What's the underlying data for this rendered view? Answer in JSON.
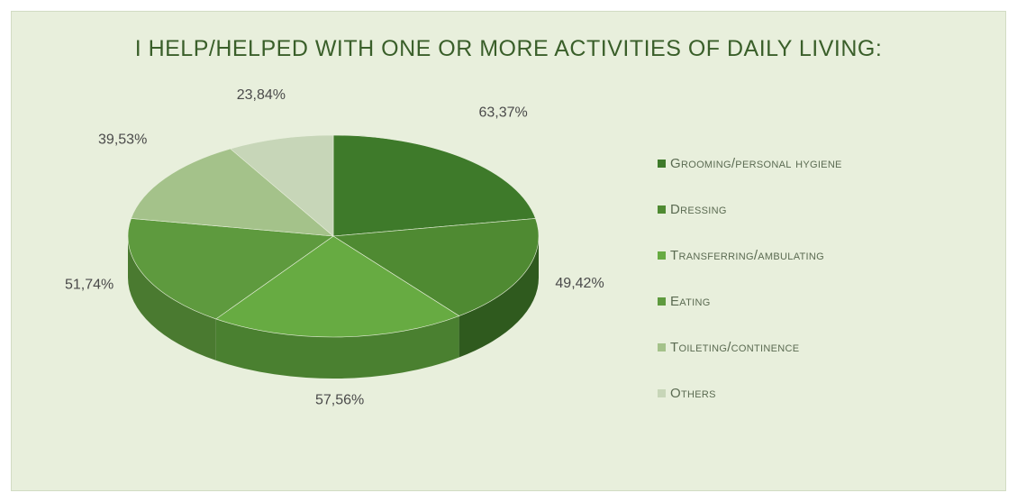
{
  "chart_data": {
    "type": "pie",
    "title": "I HELP/HELPED WITH ONE OR MORE ACTIVITIES OF DAILY LIVING:",
    "categories": [
      "Grooming/personal hygiene",
      "Dressing",
      "Transferring/ambulating",
      "Eating",
      "Toileting/continence",
      "Others"
    ],
    "values": [
      63.37,
      49.42,
      57.56,
      51.74,
      39.53,
      23.84
    ],
    "value_labels": [
      "63,37%",
      "49,42%",
      "57,56%",
      "51,74%",
      "39,53%",
      "23,84%"
    ],
    "colors": [
      "#3e7a2a",
      "#4f8a32",
      "#67ab42",
      "#5e9a3e",
      "#a4c28a",
      "#c7d6b8"
    ],
    "side_colors": [
      "#2f5d20",
      "#2f5a1e",
      "#4a8030",
      "#4a7a30",
      "#7f9d68",
      "#a4b396"
    ],
    "legend_position": "right",
    "style": "3d"
  }
}
